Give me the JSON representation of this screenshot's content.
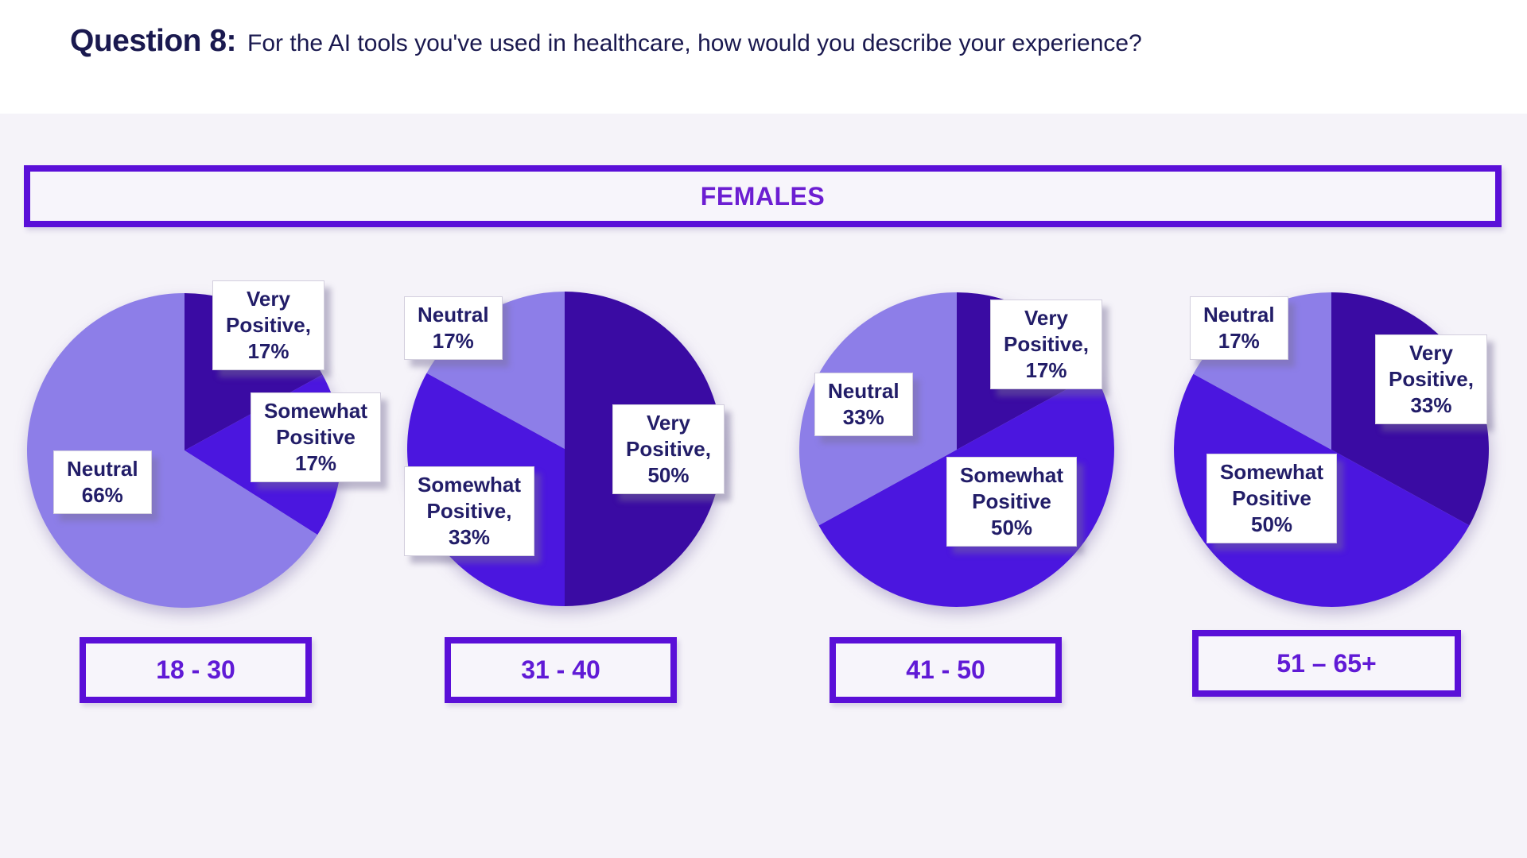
{
  "title": {
    "prefix": "Question 8:",
    "text": "For the AI tools you've used in healthcare, how would you describe your experience?"
  },
  "banner": {
    "label": "FEMALES"
  },
  "colors": {
    "very_positive": "#3A0BA3",
    "somewhat_positive": "#4B16DF",
    "neutral": "#8D7EE8",
    "accent_purple": "#5A0FD8",
    "label_text_navy": "#221D68",
    "title_navy": "#1A194F",
    "panel_background": "#F5F3F9"
  },
  "chart_data": [
    {
      "type": "pie",
      "title": "18 - 30",
      "legend_position": "none",
      "start_angle_deg": 0,
      "direction": "clockwise",
      "slices": [
        {
          "label": "Very Positive",
          "value_pct": 17,
          "color": "#3A0BA3",
          "label_display": "Very\nPositive,\n17%"
        },
        {
          "label": "Somewhat Positive",
          "value_pct": 17,
          "color": "#4B16DF",
          "label_display": "Somewhat\nPositive\n17%"
        },
        {
          "label": "Neutral",
          "value_pct": 66,
          "color": "#8D7EE8",
          "label_display": "Neutral\n66%"
        }
      ]
    },
    {
      "type": "pie",
      "title": "31 - 40",
      "legend_position": "none",
      "start_angle_deg": 0,
      "direction": "clockwise",
      "slices": [
        {
          "label": "Very Positive",
          "value_pct": 50,
          "color": "#3A0BA3",
          "label_display": "Very\nPositive,\n50%"
        },
        {
          "label": "Somewhat Positive",
          "value_pct": 33,
          "color": "#4B16DF",
          "label_display": "Somewhat\nPositive,\n33%"
        },
        {
          "label": "Neutral",
          "value_pct": 17,
          "color": "#8D7EE8",
          "label_display": "Neutral\n17%"
        }
      ]
    },
    {
      "type": "pie",
      "title": "41 - 50",
      "legend_position": "none",
      "start_angle_deg": 0,
      "direction": "clockwise",
      "slices": [
        {
          "label": "Very Positive",
          "value_pct": 17,
          "color": "#3A0BA3",
          "label_display": "Very\nPositive,\n17%"
        },
        {
          "label": "Somewhat Positive",
          "value_pct": 50,
          "color": "#4B16DF",
          "label_display": "Somewhat\nPositive\n50%"
        },
        {
          "label": "Neutral",
          "value_pct": 33,
          "color": "#8D7EE8",
          "label_display": "Neutral\n33%"
        }
      ]
    },
    {
      "type": "pie",
      "title": "51 – 65+",
      "legend_position": "none",
      "start_angle_deg": 0,
      "direction": "clockwise",
      "slices": [
        {
          "label": "Very Positive",
          "value_pct": 33,
          "color": "#3A0BA3",
          "label_display": "Very\nPositive,\n33%"
        },
        {
          "label": "Somewhat Positive",
          "value_pct": 50,
          "color": "#4B16DF",
          "label_display": "Somewhat\nPositive\n50%"
        },
        {
          "label": "Neutral",
          "value_pct": 17,
          "color": "#8D7EE8",
          "label_display": "Neutral\n17%"
        }
      ]
    }
  ]
}
